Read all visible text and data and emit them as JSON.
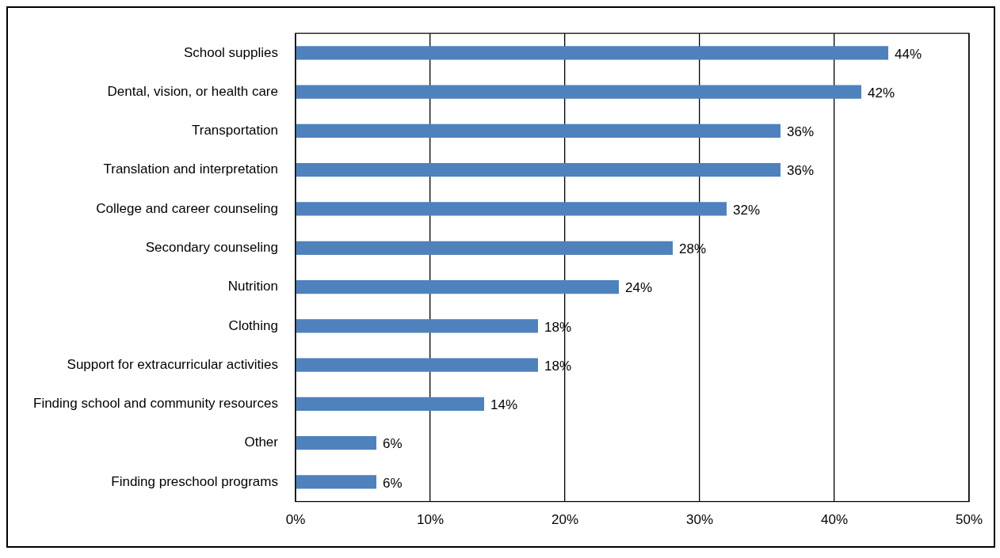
{
  "chart_data": {
    "type": "bar",
    "orientation": "horizontal",
    "categories": [
      "School supplies",
      "Dental, vision, or health care",
      "Transportation",
      "Translation and interpretation",
      "College and career counseling",
      "Secondary counseling",
      "Nutrition",
      "Clothing",
      "Support for extracurricular activities",
      "Finding school and community resources",
      "Other",
      "Finding preschool programs"
    ],
    "values": [
      44,
      42,
      36,
      36,
      32,
      28,
      24,
      18,
      18,
      14,
      6,
      6
    ],
    "value_labels": [
      "44%",
      "42%",
      "36%",
      "36%",
      "32%",
      "28%",
      "24%",
      "18%",
      "18%",
      "14%",
      "6%",
      "6%"
    ],
    "color": "#4f81bd",
    "xlim": [
      0,
      50
    ],
    "xticks": [
      {
        "value": 0,
        "label": "0%"
      },
      {
        "value": 10,
        "label": "10%"
      },
      {
        "value": 20,
        "label": "20%"
      },
      {
        "value": 30,
        "label": "30%"
      },
      {
        "value": 40,
        "label": "40%"
      },
      {
        "value": 50,
        "label": "50%"
      }
    ],
    "grid": "x",
    "legend": false
  }
}
